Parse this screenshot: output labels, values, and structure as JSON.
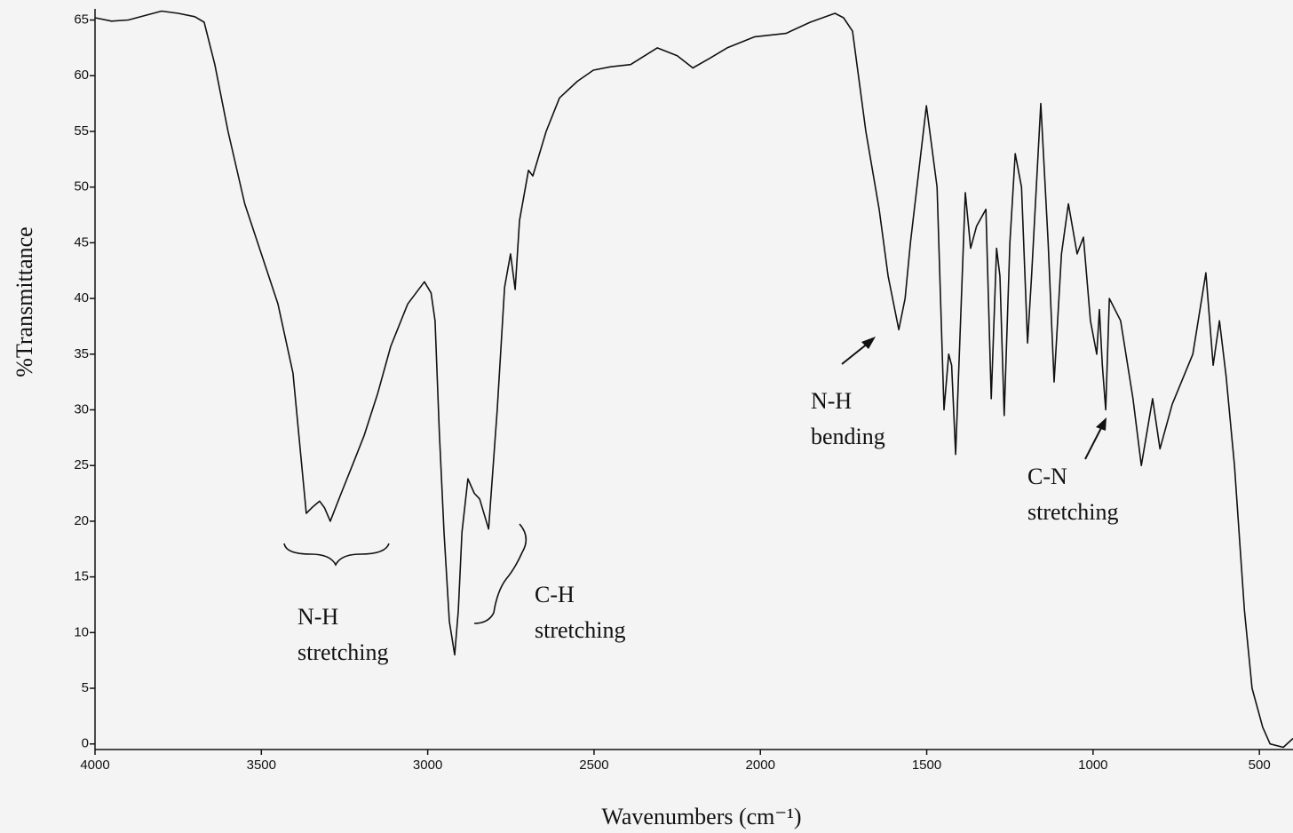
{
  "chart_data": {
    "type": "line",
    "x_label": "Wavenumbers (cm⁻¹)",
    "y_label": "%Transmittance",
    "xlim": [
      4000,
      399
    ],
    "ylim": [
      -0.5,
      66
    ],
    "xticks": [
      4000,
      3500,
      3000,
      2500,
      2000,
      1500,
      1000,
      500
    ],
    "yticks": [
      0,
      5,
      10,
      15,
      20,
      25,
      30,
      35,
      40,
      45,
      50,
      55,
      60,
      65
    ],
    "x": [
      4000,
      3950,
      3900,
      3850,
      3800,
      3750,
      3700,
      3672,
      3640,
      3600,
      3550,
      3500,
      3450,
      3405,
      3385,
      3365,
      3345,
      3325,
      3310,
      3293,
      3260,
      3220,
      3191,
      3150,
      3111,
      3060,
      3010,
      2990,
      2978,
      2965,
      2951,
      2935,
      2919,
      2908,
      2897,
      2879,
      2860,
      2844,
      2817,
      2791,
      2769,
      2751,
      2737,
      2724,
      2697,
      2684,
      2644,
      2604,
      2550,
      2502,
      2450,
      2390,
      2310,
      2250,
      2203,
      2150,
      2100,
      2017,
      1923,
      1850,
      1776,
      1750,
      1723,
      1683,
      1643,
      1616,
      1584,
      1565,
      1549,
      1501,
      1469,
      1448,
      1434,
      1425,
      1413,
      1384,
      1368,
      1350,
      1322,
      1306,
      1290,
      1280,
      1267,
      1250,
      1234,
      1215,
      1197,
      1185,
      1157,
      1135,
      1117,
      1095,
      1074,
      1048,
      1029,
      1008,
      989,
      981,
      972,
      962,
      951,
      917,
      880,
      855,
      821,
      799,
      762,
      700,
      661,
      639,
      620,
      600,
      575,
      545,
      522,
      490,
      468,
      428,
      399
    ],
    "series": [
      {
        "name": "spectrum",
        "color": "#111111",
        "values": [
          65.2,
          64.9,
          65.0,
          65.4,
          65.8,
          65.6,
          65.3,
          64.8,
          61,
          55,
          48.5,
          44,
          39.5,
          33.3,
          27,
          20.7,
          21.3,
          21.8,
          21.2,
          20,
          22.5,
          25.5,
          27.7,
          31.5,
          35.7,
          39.5,
          41.5,
          40.5,
          38,
          28,
          19,
          11,
          8,
          12,
          19,
          23.8,
          22.5,
          22,
          19.3,
          30,
          41,
          44,
          40.8,
          47,
          51.5,
          51,
          55,
          58,
          59.5,
          60.5,
          60.8,
          61,
          62.5,
          61.8,
          60.7,
          61.6,
          62.5,
          63.5,
          63.8,
          64.8,
          65.6,
          65.2,
          64,
          55,
          48,
          42,
          37.2,
          40,
          45,
          57.3,
          50,
          30,
          35,
          34,
          26,
          49.5,
          44.5,
          46.5,
          48,
          31,
          44.5,
          42,
          29.5,
          45,
          53,
          50,
          36,
          42,
          57.5,
          45,
          32.5,
          44,
          48.5,
          44,
          45.5,
          38,
          35,
          39,
          34,
          30,
          40,
          38,
          31,
          25,
          31,
          26.5,
          30.5,
          35,
          42.3,
          34,
          38,
          33,
          25,
          12,
          5,
          1.5,
          0,
          -0.3,
          0.5
        ]
      }
    ]
  }
}
